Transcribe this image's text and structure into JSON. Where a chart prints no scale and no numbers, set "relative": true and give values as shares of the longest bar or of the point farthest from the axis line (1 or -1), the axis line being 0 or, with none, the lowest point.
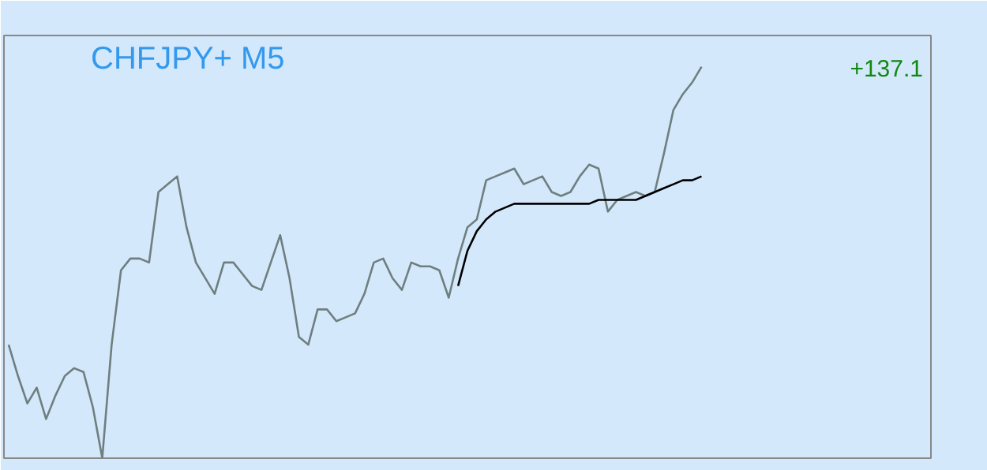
{
  "chart_data": {
    "type": "line",
    "title": "CHFJPY+ M5",
    "relative": true,
    "grid": false,
    "categories": [
      null,
      null,
      null,
      null,
      null,
      null,
      null,
      null,
      null,
      null,
      null,
      null,
      null,
      null,
      null,
      null,
      null,
      null,
      null,
      null,
      null,
      null,
      null,
      null,
      null,
      null,
      null,
      null,
      null,
      null,
      null,
      null,
      null,
      null,
      null,
      null,
      null,
      null,
      null,
      null,
      null,
      null,
      null,
      null,
      null,
      null,
      null,
      null,
      null,
      null,
      null,
      null,
      null,
      null,
      null,
      null,
      null,
      null,
      null,
      null,
      null,
      null,
      null,
      null,
      null,
      null,
      null,
      null,
      null,
      null,
      null,
      null,
      null,
      null,
      null,
      null,
      null,
      null,
      null,
      null,
      null,
      null,
      null,
      null,
      null,
      null,
      null,
      null,
      null,
      null,
      null,
      null,
      null,
      null,
      null,
      null,
      null,
      null,
      null
    ],
    "series": [
      {
        "color": "#6f7f7f",
        "values": [
          0.29,
          0.21,
          0.14,
          0.18,
          0.1,
          0.16,
          0.21,
          0.23,
          0.22,
          0.13,
          0,
          0.29,
          0.48,
          0.51,
          0.51,
          0.5,
          0.68,
          0.7,
          0.72,
          0.59,
          0.5,
          0.46,
          0.42,
          0.5,
          0.5,
          0.47,
          0.44,
          0.43,
          0.5,
          0.57,
          0.46,
          0.31,
          0.29,
          0.38,
          0.38,
          0.35,
          0.36,
          0.37,
          0.42,
          0.5,
          0.51,
          0.46,
          0.43,
          0.5,
          0.49,
          0.49,
          0.48,
          0.41,
          0.51,
          0.59,
          0.61,
          0.71,
          0.72,
          0.73,
          0.74,
          0.7,
          0.71,
          0.72,
          0.68,
          0.67,
          0.68,
          0.72,
          0.75,
          0.74,
          0.63,
          0.66,
          0.67,
          0.68,
          0.67,
          0.68,
          0.78,
          0.89,
          0.93,
          0.96,
          1.0,
          null,
          null,
          null,
          null,
          null,
          null,
          null,
          null,
          null,
          null,
          null,
          null,
          null,
          null,
          null,
          null,
          null,
          null,
          null,
          null,
          null,
          null,
          null,
          null
        ]
      },
      {
        "color": "#000000",
        "values": [
          null,
          null,
          null,
          null,
          null,
          null,
          null,
          null,
          null,
          null,
          null,
          null,
          null,
          null,
          null,
          null,
          null,
          null,
          null,
          null,
          null,
          null,
          null,
          null,
          null,
          null,
          null,
          null,
          null,
          null,
          null,
          null,
          null,
          null,
          null,
          null,
          null,
          null,
          null,
          null,
          null,
          null,
          null,
          null,
          null,
          null,
          null,
          null,
          0.44,
          0.53,
          0.58,
          0.61,
          0.63,
          0.64,
          0.65,
          0.65,
          0.65,
          0.65,
          0.65,
          0.65,
          0.65,
          0.65,
          0.65,
          0.66,
          0.66,
          0.66,
          0.66,
          0.66,
          0.67,
          0.68,
          0.69,
          0.7,
          0.71,
          0.71,
          0.72,
          null,
          null,
          null,
          null,
          null,
          null,
          null,
          null,
          null,
          null,
          null,
          null,
          null,
          null,
          null,
          null,
          null,
          null,
          null,
          null,
          null,
          null,
          null,
          null
        ]
      }
    ],
    "annotations": [
      "+137.1"
    ]
  }
}
